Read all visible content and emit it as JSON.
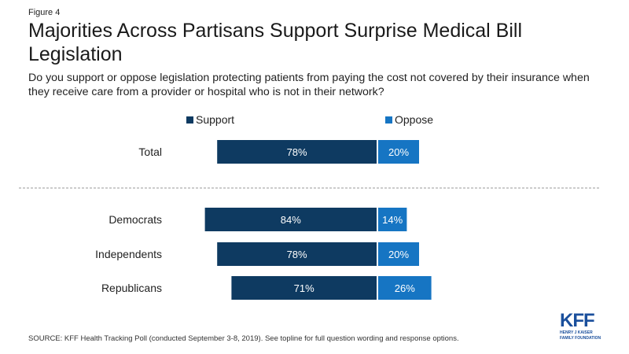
{
  "figure_label": "Figure 4",
  "title": "Majorities Across Partisans Support Surprise Medical Bill Legislation",
  "subtitle": "Do you support or oppose legislation protecting patients from paying the cost not covered by their insurance when they receive care from a provider or hospital who is not in their network?",
  "footer": "SOURCE: KFF Health Tracking Poll (conducted September 3-8, 2019). See topline for full question wording and response options.",
  "logo": {
    "name": "KFF",
    "line1": "HENRY J KAISER",
    "line2": "FAMILY FOUNDATION"
  },
  "colors": {
    "support": "#0e3a61",
    "oppose": "#1675c3",
    "divider": "#9a9a9a"
  },
  "chart_data": {
    "type": "bar",
    "orientation": "horizontal-diverging",
    "categories": [
      "Total",
      "Democrats",
      "Independents",
      "Republicans"
    ],
    "series": [
      {
        "name": "Support",
        "values": [
          78,
          84,
          78,
          71
        ],
        "labels": [
          "78%",
          "84%",
          "78%",
          "71%"
        ]
      },
      {
        "name": "Oppose",
        "values": [
          20,
          14,
          20,
          26
        ],
        "labels": [
          "20%",
          "14%",
          "20%",
          "26%"
        ]
      }
    ],
    "legend_position": "top",
    "separator_after": "Total"
  }
}
